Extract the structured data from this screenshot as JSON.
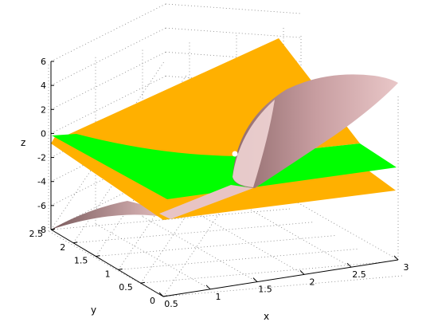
{
  "chart_data": {
    "type": "surface3d",
    "title": "",
    "xlabel": "x",
    "ylabel": "y",
    "zlabel": "z",
    "xlim": [
      0.5,
      3
    ],
    "ylim": [
      0,
      2.5
    ],
    "zlim": [
      -8,
      6
    ],
    "grid": true,
    "x_ticks": [
      "0.5",
      "1",
      "1.5",
      "2",
      "2.5",
      "3"
    ],
    "y_ticks": [
      "0",
      "0.5",
      "1",
      "1.5",
      "2",
      "2.5"
    ],
    "z_ticks": [
      "6",
      "4",
      "2",
      "0",
      "-2",
      "-4",
      "-6",
      "-8"
    ],
    "series": [
      {
        "color": "#ffb000",
        "surface": "folded plane",
        "corner_z": {
          "x0.5_y0": -5.5,
          "x0.5_y2.5": -1,
          "x3_y0": -4.5,
          "x3_y2.5": 7
        }
      },
      {
        "color": "#00ff00",
        "surface": "plane",
        "corner_z": {
          "x0.5_y0": -5,
          "x0.5_y2.5": 0,
          "x3_y0": -3,
          "x3_y2.5": -3
        }
      },
      {
        "color": "#c79da0",
        "surface": "curved sheet",
        "corner_z": {
          "x0.5_y2.5": -8,
          "x3_y2.5": 4.5,
          "x2_y1.5": -3
        }
      }
    ]
  }
}
